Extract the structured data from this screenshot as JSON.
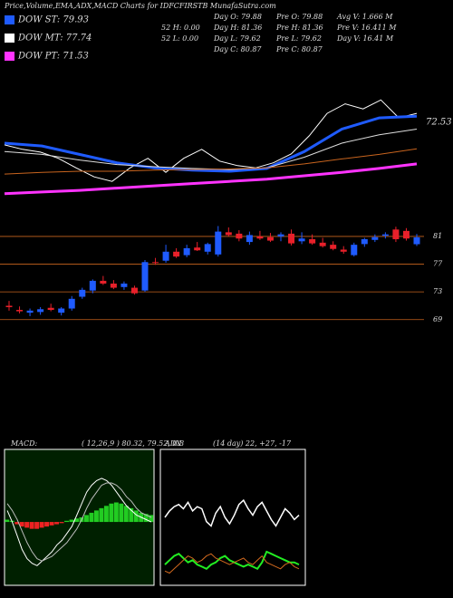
{
  "title": "Price,Volume,EMA,ADX,MACD Charts for IDFCFIRSTB MunafaSutra.com",
  "legend": [
    {
      "label": "DOW ST: 79.93",
      "color": "#1f5bff"
    },
    {
      "label": "DOW MT: 77.74",
      "color": "#ffffff"
    },
    {
      "label": "DOW PT: 71.53",
      "color": "#ff33ff"
    }
  ],
  "stats": [
    [
      "52 H: 0.00",
      "52 L: 0.00"
    ],
    [
      "Day O: 79.88",
      "Day H: 81.36",
      "Day L: 79.62",
      "Day C: 80.87"
    ],
    [
      "Pre O: 79.88",
      "Pre H: 81.36",
      "Pre L: 79.62",
      "Pre C: 80.87"
    ],
    [
      "Avg V: 1.666  M",
      "Pre V: 16.411 M",
      "Day V: 16.41 M"
    ]
  ],
  "chart_data": [
    {
      "type": "line",
      "ylim": [
        60,
        85
      ],
      "last_label": "72.53",
      "series": [
        {
          "name": "Price",
          "color": "#ffffff",
          "width": 1,
          "values": [
            69.7,
            68.9,
            68.4,
            67.3,
            65.6,
            64.0,
            63.2,
            65.6,
            67.3,
            64.8,
            67.3,
            68.9,
            66.8,
            66.0,
            65.6,
            66.5,
            68.1,
            71.3,
            75.3,
            77.0,
            76.1,
            77.7,
            74.5,
            75.3
          ]
        },
        {
          "name": "EMA ST",
          "color": "#1f5bff",
          "width": 3,
          "values": [
            70.0,
            69.5,
            68.0,
            66.5,
            65.6,
            65.2,
            65.0,
            65.5,
            68.5,
            72.5,
            74.5,
            74.8
          ]
        },
        {
          "name": "EMA MT",
          "color": "#dddddd",
          "width": 1,
          "values": [
            68.5,
            68.0,
            67.0,
            66.2,
            65.8,
            65.5,
            65.3,
            65.6,
            67.5,
            70.0,
            71.5,
            72.5
          ]
        },
        {
          "name": "EMA LT",
          "color": "#c8641e",
          "width": 1,
          "values": [
            64.5,
            64.8,
            65.0,
            65.0,
            65.2,
            65.3,
            65.4,
            65.6,
            66.3,
            67.2,
            68.0,
            69.0
          ]
        },
        {
          "name": "EMA PT",
          "color": "#ff33ff",
          "width": 3,
          "values": [
            61.0,
            61.3,
            61.6,
            62.0,
            62.4,
            62.8,
            63.2,
            63.6,
            64.2,
            64.8,
            65.5,
            66.3
          ]
        }
      ]
    },
    {
      "type": "candlestick",
      "ylim": [
        67.4,
        85.7
      ],
      "yticks": [
        69,
        73,
        77,
        81
      ],
      "up_color": "#1f5bff",
      "down_color": "#e8202a",
      "open": [
        71.0,
        70.4,
        70.0,
        70.1,
        70.7,
        70.0,
        70.6,
        72.3,
        73.2,
        74.6,
        74.2,
        73.7,
        73.6,
        73.2,
        77.3,
        77.5,
        78.8,
        78.3,
        79.4,
        78.8,
        78.4,
        81.6,
        81.4,
        80.2,
        81.0,
        80.9,
        81.0,
        81.4,
        80.3,
        80.6,
        80.1,
        79.8,
        79.1,
        78.3,
        79.9,
        80.5,
        81.1,
        82.0,
        81.8,
        79.88
      ],
      "high": [
        71.7,
        70.9,
        70.6,
        70.8,
        71.3,
        70.8,
        72.4,
        73.6,
        74.8,
        75.3,
        74.7,
        74.5,
        73.9,
        77.6,
        77.9,
        79.8,
        79.3,
        79.8,
        80.2,
        80.1,
        82.5,
        82.3,
        81.9,
        81.7,
        81.8,
        81.5,
        81.6,
        82.0,
        81.6,
        81.3,
        80.8,
        80.3,
        79.6,
        80.1,
        80.8,
        81.3,
        81.6,
        82.4,
        82.2,
        81.36
      ],
      "low": [
        70.3,
        69.9,
        69.5,
        69.7,
        70.2,
        69.6,
        70.3,
        72.0,
        72.8,
        74.0,
        73.4,
        73.3,
        72.6,
        73.0,
        76.9,
        77.2,
        77.9,
        78.0,
        78.9,
        78.4,
        78.1,
        81.0,
        80.3,
        79.8,
        80.5,
        80.2,
        80.3,
        79.7,
        79.9,
        79.8,
        79.4,
        79.0,
        78.5,
        78.1,
        79.5,
        80.2,
        80.7,
        80.2,
        80.4,
        79.62
      ],
      "close": [
        70.8,
        70.2,
        70.3,
        70.5,
        70.4,
        70.6,
        72.0,
        73.3,
        74.6,
        74.2,
        73.6,
        74.2,
        72.8,
        77.3,
        77.2,
        78.8,
        78.1,
        79.3,
        79.0,
        79.9,
        81.7,
        81.2,
        80.7,
        81.2,
        80.7,
        80.4,
        81.3,
        80.0,
        80.7,
        80.0,
        79.6,
        79.2,
        78.8,
        79.8,
        80.6,
        80.9,
        81.3,
        80.6,
        80.7,
        80.87
      ]
    },
    {
      "type": "macd",
      "label": "MACD:",
      "params": "( 12,26,9 ) 80.32, 79.52, 0.8",
      "ylim": [
        -2.6,
        3.0
      ],
      "histogram": [
        0.1,
        0.05,
        -0.1,
        -0.2,
        -0.25,
        -0.3,
        -0.3,
        -0.25,
        -0.2,
        -0.15,
        -0.1,
        -0.05,
        0.05,
        0.1,
        0.15,
        0.2,
        0.3,
        0.4,
        0.5,
        0.6,
        0.7,
        0.8,
        0.85,
        0.8,
        0.7,
        0.6,
        0.5,
        0.4,
        0.35,
        0.3
      ],
      "pos_color": "#22cc22",
      "neg_color": "#ee2222",
      "series": [
        {
          "name": "MACD",
          "color": "#ffffff",
          "values": [
            0.5,
            0.0,
            -0.6,
            -1.2,
            -1.6,
            -1.8,
            -1.9,
            -1.7,
            -1.5,
            -1.3,
            -1.0,
            -0.8,
            -0.5,
            -0.2,
            0.3,
            0.8,
            1.3,
            1.6,
            1.8,
            1.9,
            1.8,
            1.6,
            1.3,
            1.0,
            0.7,
            0.5,
            0.3,
            0.2,
            0.1,
            0.0
          ]
        },
        {
          "name": "Signal",
          "color": "#bbbbbb",
          "values": [
            0.8,
            0.5,
            0.1,
            -0.4,
            -0.9,
            -1.3,
            -1.6,
            -1.7,
            -1.6,
            -1.5,
            -1.3,
            -1.1,
            -0.9,
            -0.6,
            -0.3,
            0.1,
            0.6,
            1.0,
            1.3,
            1.6,
            1.7,
            1.7,
            1.6,
            1.4,
            1.1,
            0.9,
            0.6,
            0.4,
            0.3,
            0.2
          ]
        }
      ]
    },
    {
      "type": "adx",
      "label": "ADX",
      "params": "(14 day) 22, +27, -17",
      "ylim": [
        0,
        60
      ],
      "series": [
        {
          "name": "ADX",
          "color": "#ffffff",
          "width": 1.5,
          "values": [
            30,
            33,
            35,
            36,
            34,
            37,
            33,
            35,
            34,
            28,
            26,
            32,
            35,
            30,
            27,
            31,
            36,
            38,
            34,
            31,
            35,
            37,
            33,
            29,
            26,
            30,
            34,
            32,
            29,
            31
          ]
        },
        {
          "name": "+DI",
          "color": "#22ee22",
          "width": 2,
          "values": [
            8,
            10,
            12,
            13,
            11,
            9,
            10,
            8,
            7,
            6,
            8,
            9,
            11,
            12,
            10,
            9,
            8,
            7,
            8,
            7,
            6,
            9,
            14,
            13,
            12,
            11,
            10,
            9,
            9,
            8
          ]
        },
        {
          "name": "-DI",
          "color": "#d2691e",
          "width": 1,
          "values": [
            5,
            4,
            6,
            8,
            10,
            12,
            11,
            9,
            10,
            12,
            13,
            11,
            10,
            9,
            8,
            9,
            10,
            11,
            9,
            8,
            10,
            12,
            9,
            8,
            7,
            6,
            8,
            9,
            7,
            6
          ]
        }
      ]
    }
  ]
}
